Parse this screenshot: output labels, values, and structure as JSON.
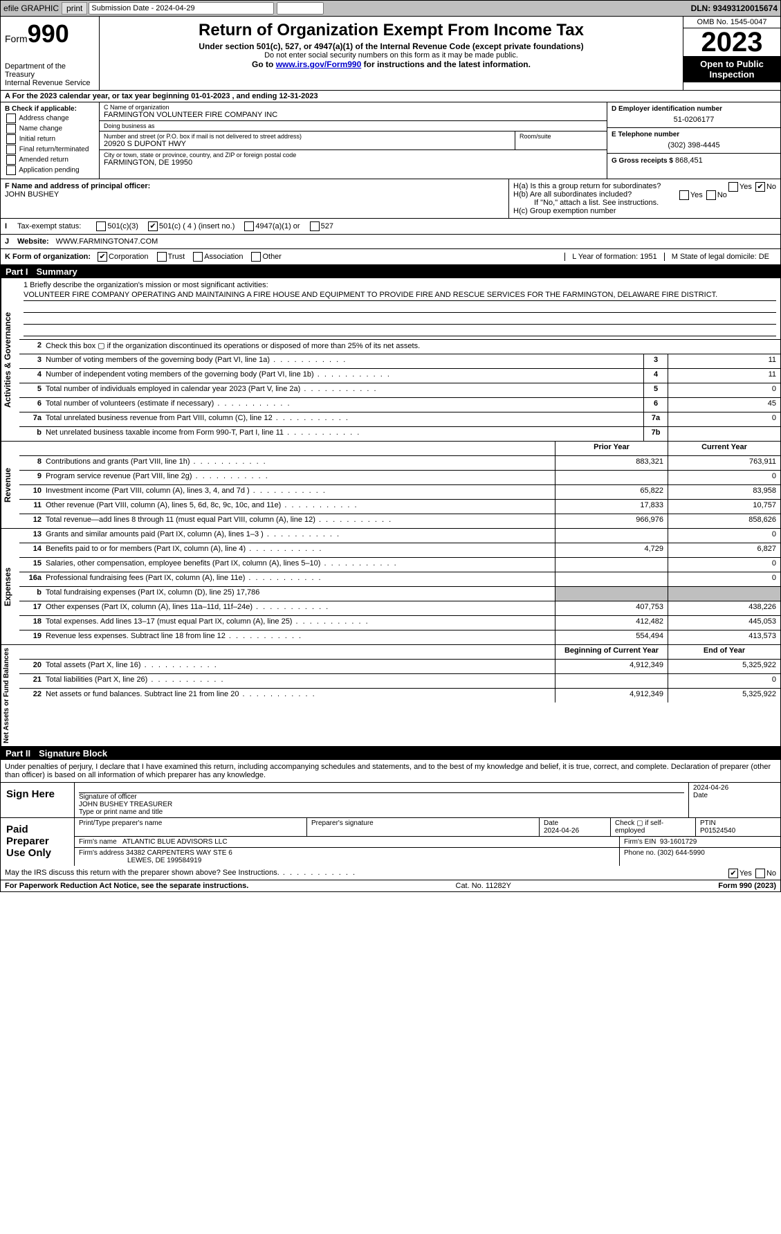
{
  "topbar": {
    "efile": "efile GRAPHIC",
    "print": "print",
    "submission_label": "Submission Date - 2024-04-29",
    "dln": "DLN: 93493120015674"
  },
  "header": {
    "form_label": "Form",
    "form_number": "990",
    "dept": "Department of the Treasury",
    "irs": "Internal Revenue Service",
    "title": "Return of Organization Exempt From Income Tax",
    "subtitle": "Under section 501(c), 527, or 4947(a)(1) of the Internal Revenue Code (except private foundations)",
    "warn": "Do not enter social security numbers on this form as it may be made public.",
    "goto_pre": "Go to ",
    "goto_link": "www.irs.gov/Form990",
    "goto_post": " for instructions and the latest information.",
    "omb": "OMB No. 1545-0047",
    "year": "2023",
    "open": "Open to Public Inspection"
  },
  "row_a": "A  For the 2023 calendar year, or tax year beginning 01-01-2023   , and ending 12-31-2023",
  "section_b": {
    "header": "B Check if applicable:",
    "options": [
      "Address change",
      "Name change",
      "Initial return",
      "Final return/terminated",
      "Amended return",
      "Application pending"
    ]
  },
  "section_c": {
    "name_label": "C Name of organization",
    "name": "FARMINGTON VOLUNTEER FIRE COMPANY INC",
    "dba_label": "Doing business as",
    "dba": "",
    "street_label": "Number and street (or P.O. box if mail is not delivered to street address)",
    "street": "20920 S DUPONT HWY",
    "room_label": "Room/suite",
    "room": "",
    "city_label": "City or town, state or province, country, and ZIP or foreign postal code",
    "city": "FARMINGTON, DE   19950"
  },
  "section_d": {
    "ein_label": "D Employer identification number",
    "ein": "51-0206177",
    "phone_label": "E Telephone number",
    "phone": "(302) 398-4445",
    "gross_label": "G Gross receipts $",
    "gross": "868,451"
  },
  "section_f": {
    "label": "F  Name and address of principal officer:",
    "value": "JOHN BUSHEY"
  },
  "section_h": {
    "ha": "H(a)  Is this a group return for subordinates?",
    "ha_yes": "Yes",
    "ha_no": "No",
    "hb": "H(b)  Are all subordinates included?",
    "hb_note": "If \"No,\" attach a list. See instructions.",
    "hc": "H(c)  Group exemption number"
  },
  "row_i": {
    "label": "Tax-exempt status:",
    "opts": [
      "501(c)(3)",
      "501(c) ( 4 ) (insert no.)",
      "4947(a)(1) or",
      "527"
    ]
  },
  "row_j": {
    "label": "Website:",
    "value": "WWW.FARMINGTON47.COM"
  },
  "row_k": {
    "label": "K Form of organization:",
    "opts": [
      "Corporation",
      "Trust",
      "Association",
      "Other"
    ],
    "l_label": "L Year of formation:",
    "l_val": "1951",
    "m_label": "M State of legal domicile:",
    "m_val": "DE"
  },
  "part1": {
    "num": "Part I",
    "title": "Summary"
  },
  "mission": {
    "prompt": "1   Briefly describe the organization's mission or most significant activities:",
    "text": "VOLUNTEER FIRE COMPANY OPERATING AND MAINTAINING A FIRE HOUSE AND EQUIPMENT TO PROVIDE FIRE AND RESCUE SERVICES FOR THE FARMINGTON, DELAWARE FIRE DISTRICT."
  },
  "gov_lines": [
    {
      "n": "2",
      "d": "Check this box ▢ if the organization discontinued its operations or disposed of more than 25% of its net assets."
    },
    {
      "n": "3",
      "d": "Number of voting members of the governing body (Part VI, line 1a)",
      "box": "3",
      "v": "11"
    },
    {
      "n": "4",
      "d": "Number of independent voting members of the governing body (Part VI, line 1b)",
      "box": "4",
      "v": "11"
    },
    {
      "n": "5",
      "d": "Total number of individuals employed in calendar year 2023 (Part V, line 2a)",
      "box": "5",
      "v": "0"
    },
    {
      "n": "6",
      "d": "Total number of volunteers (estimate if necessary)",
      "box": "6",
      "v": "45"
    },
    {
      "n": "7a",
      "d": "Total unrelated business revenue from Part VIII, column (C), line 12",
      "box": "7a",
      "v": "0"
    },
    {
      "n": "b",
      "d": "Net unrelated business taxable income from Form 990-T, Part I, line 11",
      "box": "7b",
      "v": ""
    }
  ],
  "rev_head": {
    "prior": "Prior Year",
    "current": "Current Year"
  },
  "revenue": [
    {
      "n": "8",
      "d": "Contributions and grants (Part VIII, line 1h)",
      "p": "883,321",
      "c": "763,911"
    },
    {
      "n": "9",
      "d": "Program service revenue (Part VIII, line 2g)",
      "p": "",
      "c": "0"
    },
    {
      "n": "10",
      "d": "Investment income (Part VIII, column (A), lines 3, 4, and 7d )",
      "p": "65,822",
      "c": "83,958"
    },
    {
      "n": "11",
      "d": "Other revenue (Part VIII, column (A), lines 5, 6d, 8c, 9c, 10c, and 11e)",
      "p": "17,833",
      "c": "10,757"
    },
    {
      "n": "12",
      "d": "Total revenue—add lines 8 through 11 (must equal Part VIII, column (A), line 12)",
      "p": "966,976",
      "c": "858,626"
    }
  ],
  "expenses": [
    {
      "n": "13",
      "d": "Grants and similar amounts paid (Part IX, column (A), lines 1–3 )",
      "p": "",
      "c": "0"
    },
    {
      "n": "14",
      "d": "Benefits paid to or for members (Part IX, column (A), line 4)",
      "p": "4,729",
      "c": "6,827"
    },
    {
      "n": "15",
      "d": "Salaries, other compensation, employee benefits (Part IX, column (A), lines 5–10)",
      "p": "",
      "c": "0"
    },
    {
      "n": "16a",
      "d": "Professional fundraising fees (Part IX, column (A), line 11e)",
      "p": "",
      "c": "0"
    },
    {
      "n": "b",
      "d": "Total fundraising expenses (Part IX, column (D), line 25) 17,786",
      "p": "shade",
      "c": "shade"
    },
    {
      "n": "17",
      "d": "Other expenses (Part IX, column (A), lines 11a–11d, 11f–24e)",
      "p": "407,753",
      "c": "438,226"
    },
    {
      "n": "18",
      "d": "Total expenses. Add lines 13–17 (must equal Part IX, column (A), line 25)",
      "p": "412,482",
      "c": "445,053"
    },
    {
      "n": "19",
      "d": "Revenue less expenses. Subtract line 18 from line 12",
      "p": "554,494",
      "c": "413,573"
    }
  ],
  "net_head": {
    "prior": "Beginning of Current Year",
    "current": "End of Year"
  },
  "net": [
    {
      "n": "20",
      "d": "Total assets (Part X, line 16)",
      "p": "4,912,349",
      "c": "5,325,922"
    },
    {
      "n": "21",
      "d": "Total liabilities (Part X, line 26)",
      "p": "",
      "c": "0"
    },
    {
      "n": "22",
      "d": "Net assets or fund balances. Subtract line 21 from line 20",
      "p": "4,912,349",
      "c": "5,325,922"
    }
  ],
  "vtabs": {
    "gov": "Activities & Governance",
    "rev": "Revenue",
    "exp": "Expenses",
    "net": "Net Assets or Fund Balances"
  },
  "part2": {
    "num": "Part II",
    "title": "Signature Block"
  },
  "sig": {
    "decl": "Under penalties of perjury, I declare that I have examined this return, including accompanying schedules and statements, and to the best of my knowledge and belief, it is true, correct, and complete. Declaration of preparer (other than officer) is based on all information of which preparer has any knowledge.",
    "sign_here": "Sign Here",
    "sig_officer_label": "Signature of officer",
    "sig_date": "2024-04-26",
    "sig_officer": "JOHN BUSHEY  TREASURER",
    "sig_type_label": "Type or print name and title",
    "paid": "Paid Preparer Use Only",
    "prep_name_label": "Print/Type preparer's name",
    "prep_sig_label": "Preparer's signature",
    "prep_date_label": "Date",
    "prep_date": "2024-04-26",
    "check_label": "Check ▢ if self-employed",
    "ptin_label": "PTIN",
    "ptin": "P01524540",
    "firm_name_label": "Firm's name",
    "firm_name": "ATLANTIC BLUE ADVISORS LLC",
    "firm_ein_label": "Firm's EIN",
    "firm_ein": "93-1601729",
    "firm_addr_label": "Firm's address",
    "firm_addr": "34382 CARPENTERS WAY STE 6",
    "firm_addr2": "LEWES, DE   199584919",
    "firm_phone_label": "Phone no.",
    "firm_phone": "(302) 644-5990",
    "discuss": "May the IRS discuss this return with the preparer shown above? See Instructions.",
    "yes": "Yes",
    "no": "No"
  },
  "footer": {
    "left": "For Paperwork Reduction Act Notice, see the separate instructions.",
    "mid": "Cat. No. 11282Y",
    "right": "Form 990 (2023)"
  }
}
